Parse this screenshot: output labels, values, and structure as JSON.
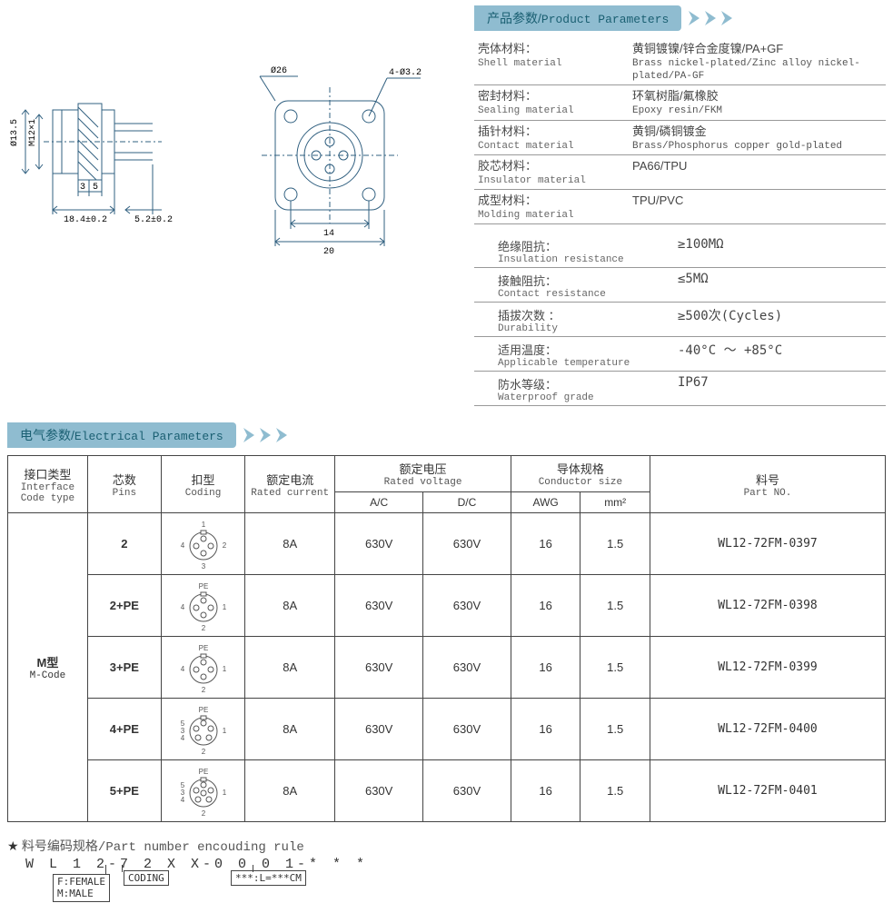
{
  "colors": {
    "tab_bg": "#8fbcd0",
    "tab_fg": "#1a5f72",
    "rule": "#999999",
    "border": "#444444",
    "drawing": "#316080",
    "arrow_fill": "#87b8c8"
  },
  "sections": {
    "product_params": {
      "cn": "产品参数",
      "en": "Product Parameters"
    },
    "electrical_params": {
      "cn": "电气参数",
      "en": "Electrical Parameters"
    }
  },
  "drawing_labels": {
    "dia135": "Ø13.5",
    "m12": "M12×1",
    "d3": "3",
    "d5": "5",
    "d184": "18.4±0.2",
    "d52": "5.2±0.2",
    "d26": "Ø26",
    "d432": "4-Ø3.2",
    "d14": "14",
    "d20": "20"
  },
  "product_params": [
    {
      "label_cn": "壳体材料：",
      "label_en": "Shell material",
      "value_cn": "黄铜镀镍/锌合金度镍/PA+GF",
      "value_en": "Brass nickel-plated/Zinc alloy nickel-plated/PA-GF"
    },
    {
      "label_cn": "密封材料：",
      "label_en": "Sealing material",
      "value_cn": "环氧树脂/氟橡胶",
      "value_en": "Epoxy resin/FKM"
    },
    {
      "label_cn": "插针材料：",
      "label_en": "Contact material",
      "value_cn": "黄铜/磷铜镀金",
      "value_en": "Brass/Phosphorus copper gold-plated"
    },
    {
      "label_cn": "胶芯材料：",
      "label_en": "Insulator material",
      "value_cn": "PA66/TPU",
      "value_en": ""
    },
    {
      "label_cn": "成型材料：",
      "label_en": "Molding material",
      "value_cn": "TPU/PVC",
      "value_en": ""
    }
  ],
  "product_specs": [
    {
      "label_cn": "绝缘阻抗：",
      "label_en": "Insulation resistance",
      "value": "≥100MΩ"
    },
    {
      "label_cn": "接触阻抗：",
      "label_en": "Contact resistance",
      "value": "≤5MΩ"
    },
    {
      "label_cn": "插拔次数 ：",
      "label_en": "Durability",
      "value": "≥500次(Cycles)"
    },
    {
      "label_cn": "适用温度：",
      "label_en": "Applicable temperature",
      "value": "-40°C ～ +85°C"
    },
    {
      "label_cn": "防水等级：",
      "label_en": "Waterproof grade",
      "value": "IP67"
    }
  ],
  "table": {
    "headers": {
      "interface": {
        "cn": "接口类型",
        "en": "Interface Code type"
      },
      "pins": {
        "cn": "芯数",
        "en": "Pins"
      },
      "coding": {
        "cn": "扣型",
        "en": "Coding"
      },
      "rated_current": {
        "cn": "额定电流",
        "en": "Rated current"
      },
      "rated_voltage": {
        "cn": "额定电压",
        "en": "Rated voltage"
      },
      "voltage_ac": "A/C",
      "voltage_dc": "D/C",
      "conductor": {
        "cn": "导体规格",
        "en": "Conductor size"
      },
      "awg": "AWG",
      "mm2": "mm²",
      "part_no": {
        "cn": "料号",
        "en": "Part NO."
      }
    },
    "interface": {
      "cn": "M型",
      "en": "M-Code"
    },
    "rows": [
      {
        "pins": "2",
        "current": "8A",
        "ac": "630V",
        "dc": "630V",
        "awg": "16",
        "mm2": "1.5",
        "part": "WL12-72FM-0397",
        "coding": {
          "positions": [
            [
              0,
              -8
            ],
            [
              8,
              0
            ],
            [
              0,
              8
            ],
            [
              -8,
              0
            ]
          ],
          "labels": [
            "1",
            "2",
            "3",
            "4"
          ]
        }
      },
      {
        "pins": "2+PE",
        "current": "8A",
        "ac": "630V",
        "dc": "630V",
        "awg": "16",
        "mm2": "1.5",
        "part": "WL12-72FM-0398",
        "coding": {
          "positions": [
            [
              0,
              -8
            ],
            [
              8,
              0
            ],
            [
              0,
              8
            ],
            [
              -8,
              0
            ]
          ],
          "labels": [
            "PE",
            "1",
            "2",
            "4"
          ]
        }
      },
      {
        "pins": "3+PE",
        "current": "8A",
        "ac": "630V",
        "dc": "630V",
        "awg": "16",
        "mm2": "1.5",
        "part": "WL12-72FM-0399",
        "coding": {
          "positions": [
            [
              0,
              -8
            ],
            [
              8,
              0
            ],
            [
              0,
              8
            ],
            [
              -8,
              0
            ]
          ],
          "labels": [
            "PE",
            "1",
            "2",
            "4"
          ]
        }
      },
      {
        "pins": "4+PE",
        "current": "8A",
        "ac": "630V",
        "dc": "630V",
        "awg": "16",
        "mm2": "1.5",
        "part": "WL12-72FM-0400",
        "coding": {
          "positions": [
            [
              0,
              -9
            ],
            [
              8,
              -3
            ],
            [
              6,
              7
            ],
            [
              -6,
              7
            ],
            [
              -8,
              -3
            ]
          ],
          "labels": [
            "PE",
            "1",
            "2",
            "3",
            "5"
          ],
          "extra_left": "4"
        }
      },
      {
        "pins": "5+PE",
        "current": "8A",
        "ac": "630V",
        "dc": "630V",
        "awg": "16",
        "mm2": "1.5",
        "part": "WL12-72FM-0401",
        "coding": {
          "positions": [
            [
              0,
              -9
            ],
            [
              8,
              -3
            ],
            [
              6,
              7
            ],
            [
              -6,
              7
            ],
            [
              -8,
              -3
            ],
            [
              0,
              0
            ]
          ],
          "labels": [
            "PE",
            "1",
            "2",
            "3",
            "5"
          ],
          "extra_left": "4"
        }
      }
    ]
  },
  "encoding_rule": {
    "title_cn": "料号编码规格",
    "title_en": "Part number encouding rule",
    "code": "W L 1 2-7 2 X X-0 0 0 1-* * *",
    "fm": "F:FEMALE\nM:MALE",
    "coding_box": "CODING",
    "len_box": "***:L=***CM"
  }
}
